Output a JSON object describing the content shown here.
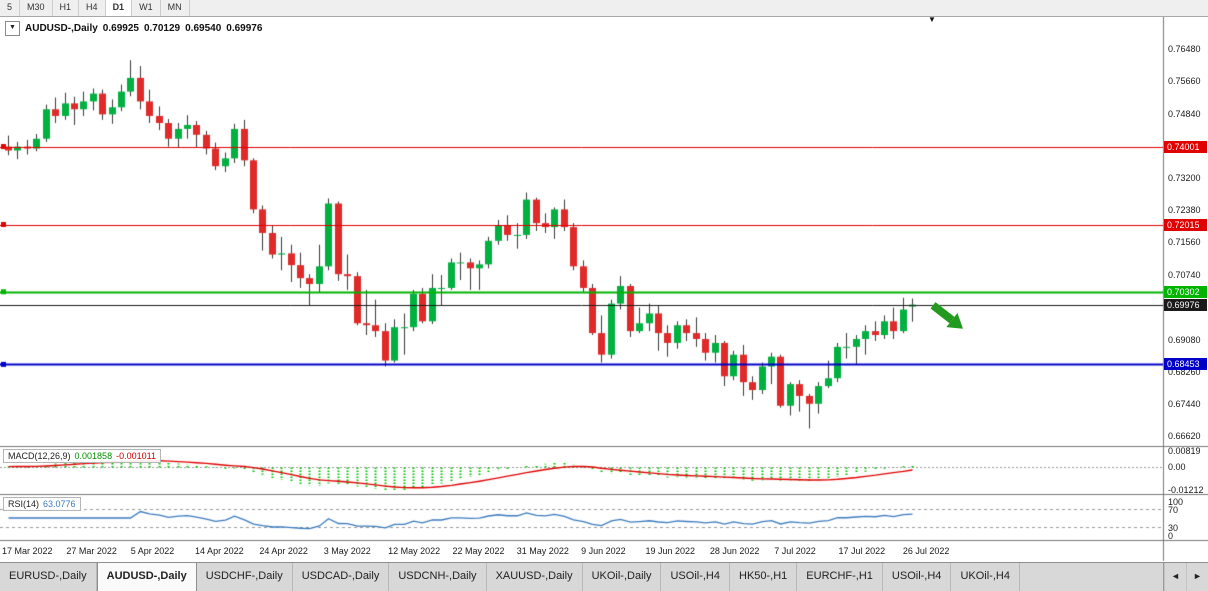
{
  "toolbar": {
    "timeframes": [
      "5",
      "M30",
      "H1",
      "H4",
      "D1",
      "W1",
      "MN"
    ],
    "active_timeframe": "D1"
  },
  "chart": {
    "marker": "▼",
    "symbol_label": "AUDUSD-,Daily",
    "ohlc": {
      "open": "0.69925",
      "high": "0.70129",
      "low": "0.69540",
      "close": "0.69976"
    }
  },
  "price_axis": {
    "ticks": [
      "0.76480",
      "0.75660",
      "0.74840",
      "0.73200",
      "0.72380",
      "0.71560",
      "0.70740",
      "0.69080",
      "0.68260",
      "0.67440",
      "0.66620"
    ],
    "badges": [
      {
        "label": "0.74001",
        "value": 0.74001,
        "color": "#e00000",
        "line_width": 1,
        "marker": true
      },
      {
        "label": "0.72015",
        "value": 0.72015,
        "color": "#e00000",
        "line_width": 1,
        "marker": true
      },
      {
        "label": "0.70302",
        "value": 0.70302,
        "color": "#00b400",
        "line_width": 2,
        "marker": true
      },
      {
        "label": "0.69976",
        "value": 0.69976,
        "color": "#1a1a1a",
        "line_width": 1,
        "marker": false
      },
      {
        "label": "0.68453",
        "value": 0.68453,
        "color": "#0000c8",
        "line_width": 2,
        "marker": true
      }
    ]
  },
  "macd": {
    "label": "MACD(12,26,9)",
    "value_main": "0.001858",
    "value_signal": "-0.001011",
    "axis": [
      {
        "label": "0.00819",
        "value": 0.00819
      },
      {
        "label": "0.00",
        "value": 0
      },
      {
        "label": "-0.01212",
        "value": -0.01212
      }
    ]
  },
  "rsi": {
    "label": "RSI(14)",
    "value": "63.0776",
    "axis": [
      {
        "label": "100",
        "value": 100
      },
      {
        "label": "70",
        "value": 70
      },
      {
        "label": "30",
        "value": 30
      },
      {
        "label": "0",
        "value": 0
      }
    ],
    "levels": [
      70,
      30
    ]
  },
  "date_axis": {
    "labels": [
      "17 Mar 2022",
      "27 Mar 2022",
      "5 Apr 2022",
      "14 Apr 2022",
      "24 Apr 2022",
      "3 May 2022",
      "12 May 2022",
      "22 May 2022",
      "31 May 2022",
      "9 Jun 2022",
      "19 Jun 2022",
      "28 Jun 2022",
      "7 Jul 2022",
      "17 Jul 2022",
      "26 Jul 2022"
    ]
  },
  "tabs": {
    "active_index": 1,
    "items": [
      {
        "label": "EURUSD-,Daily"
      },
      {
        "label": "AUDUSD-,Daily"
      },
      {
        "label": "USDCHF-,Daily"
      },
      {
        "label": "USDCAD-,Daily"
      },
      {
        "label": "USDCNH-,Daily"
      },
      {
        "label": "XAUUSD-,Daily"
      },
      {
        "label": "UKOil-,Daily"
      },
      {
        "label": "USOil-,H4"
      },
      {
        "label": "HK50-,H1"
      },
      {
        "label": "EURCHF-,H1"
      },
      {
        "label": "USOil-,H4"
      },
      {
        "label": "UKOil-,H4"
      }
    ],
    "nav": {
      "left": "◄",
      "right": "►"
    }
  },
  "annotation": {
    "type": "down-right-arrow",
    "color": "#22991f"
  },
  "chart_data": {
    "type": "candlestick",
    "symbol": "AUDUSD",
    "timeframe": "Daily",
    "ohlc_current": {
      "open": 0.69925,
      "high": 0.70129,
      "low": 0.6954,
      "close": 0.69976
    },
    "ylim": [
      0.664,
      0.773
    ],
    "horizontal_lines": [
      {
        "value": 0.74001,
        "color": "#e00000"
      },
      {
        "value": 0.72015,
        "color": "#e00000"
      },
      {
        "value": 0.70302,
        "color": "#00b400"
      },
      {
        "value": 0.69976,
        "color": "#1a1a1a"
      },
      {
        "value": 0.68453,
        "color": "#0000c8"
      }
    ],
    "indicators": [
      {
        "name": "MACD",
        "params": [
          12,
          26,
          9
        ],
        "current_main": 0.001858,
        "current_signal": -0.001011,
        "axis_max": 0.00819,
        "axis_min": -0.01212
      },
      {
        "name": "RSI",
        "params": [
          14
        ],
        "current": 63.0776,
        "levels": [
          70,
          30
        ]
      }
    ],
    "colors": {
      "bull": "#00b140",
      "bear": "#e02a2a",
      "wick": "#3a3a3a",
      "macd_hist": "#00c000",
      "macd_signal": "#e00000",
      "rsi_line": "#3a7abd",
      "background": "#ffffff"
    },
    "dates": [
      "2022-03-17",
      "2022-03-18",
      "2022-03-21",
      "2022-03-22",
      "2022-03-23",
      "2022-03-24",
      "2022-03-25",
      "2022-03-28",
      "2022-03-29",
      "2022-03-30",
      "2022-03-31",
      "2022-04-01",
      "2022-04-04",
      "2022-04-05",
      "2022-04-06",
      "2022-04-07",
      "2022-04-08",
      "2022-04-11",
      "2022-04-12",
      "2022-04-13",
      "2022-04-14",
      "2022-04-15",
      "2022-04-18",
      "2022-04-19",
      "2022-04-20",
      "2022-04-21",
      "2022-04-22",
      "2022-04-25",
      "2022-04-26",
      "2022-04-27",
      "2022-04-28",
      "2022-04-29",
      "2022-05-02",
      "2022-05-03",
      "2022-05-04",
      "2022-05-05",
      "2022-05-06",
      "2022-05-09",
      "2022-05-10",
      "2022-05-11",
      "2022-05-12",
      "2022-05-13",
      "2022-05-16",
      "2022-05-17",
      "2022-05-18",
      "2022-05-19",
      "2022-05-20",
      "2022-05-23",
      "2022-05-24",
      "2022-05-25",
      "2022-05-26",
      "2022-05-27",
      "2022-05-30",
      "2022-05-31",
      "2022-06-01",
      "2022-06-02",
      "2022-06-03",
      "2022-06-06",
      "2022-06-07",
      "2022-06-08",
      "2022-06-09",
      "2022-06-10",
      "2022-06-13",
      "2022-06-14",
      "2022-06-15",
      "2022-06-16",
      "2022-06-17",
      "2022-06-20",
      "2022-06-21",
      "2022-06-22",
      "2022-06-23",
      "2022-06-24",
      "2022-06-27",
      "2022-06-28",
      "2022-06-29",
      "2022-06-30",
      "2022-07-01",
      "2022-07-04",
      "2022-07-05",
      "2022-07-06",
      "2022-07-07",
      "2022-07-08",
      "2022-07-11",
      "2022-07-12",
      "2022-07-13",
      "2022-07-14",
      "2022-07-15",
      "2022-07-18",
      "2022-07-19",
      "2022-07-20",
      "2022-07-21",
      "2022-07-22",
      "2022-07-25",
      "2022-07-26",
      "2022-07-27",
      "2022-07-28",
      "2022-07-29"
    ],
    "candles": [
      [
        0.74,
        0.7428,
        0.7378,
        0.739
      ],
      [
        0.739,
        0.7412,
        0.7368,
        0.74
      ],
      [
        0.74,
        0.7417,
        0.738,
        0.7395
      ],
      [
        0.7395,
        0.7432,
        0.7388,
        0.742
      ],
      [
        0.742,
        0.7507,
        0.7412,
        0.7495
      ],
      [
        0.7495,
        0.7525,
        0.746,
        0.7478
      ],
      [
        0.7478,
        0.7537,
        0.7468,
        0.751
      ],
      [
        0.751,
        0.7527,
        0.7455,
        0.7495
      ],
      [
        0.7495,
        0.754,
        0.7478,
        0.7515
      ],
      [
        0.7515,
        0.7548,
        0.7492,
        0.7535
      ],
      [
        0.7535,
        0.7545,
        0.7468,
        0.7482
      ],
      [
        0.7482,
        0.752,
        0.7458,
        0.75
      ],
      [
        0.75,
        0.7558,
        0.749,
        0.754
      ],
      [
        0.754,
        0.762,
        0.7528,
        0.7575
      ],
      [
        0.7575,
        0.7605,
        0.7495,
        0.7515
      ],
      [
        0.7515,
        0.7545,
        0.746,
        0.7478
      ],
      [
        0.7478,
        0.7502,
        0.7442,
        0.746
      ],
      [
        0.746,
        0.747,
        0.74,
        0.742
      ],
      [
        0.742,
        0.746,
        0.7398,
        0.7445
      ],
      [
        0.7445,
        0.748,
        0.742,
        0.7455
      ],
      [
        0.7455,
        0.7465,
        0.7398,
        0.743
      ],
      [
        0.743,
        0.744,
        0.738,
        0.7395
      ],
      [
        0.7395,
        0.741,
        0.734,
        0.735
      ],
      [
        0.735,
        0.7385,
        0.7335,
        0.737
      ],
      [
        0.737,
        0.7458,
        0.7358,
        0.7445
      ],
      [
        0.7445,
        0.7468,
        0.735,
        0.7365
      ],
      [
        0.7365,
        0.737,
        0.723,
        0.724
      ],
      [
        0.724,
        0.725,
        0.7135,
        0.718
      ],
      [
        0.718,
        0.72,
        0.7115,
        0.7125
      ],
      [
        0.7125,
        0.717,
        0.7085,
        0.7128
      ],
      [
        0.7128,
        0.715,
        0.7055,
        0.7098
      ],
      [
        0.7098,
        0.713,
        0.704,
        0.7065
      ],
      [
        0.7065,
        0.7075,
        0.6995,
        0.705
      ],
      [
        0.705,
        0.715,
        0.7029,
        0.7095
      ],
      [
        0.7095,
        0.7268,
        0.7085,
        0.7255
      ],
      [
        0.7255,
        0.726,
        0.7058,
        0.7075
      ],
      [
        0.7075,
        0.7125,
        0.7035,
        0.707
      ],
      [
        0.707,
        0.708,
        0.6945,
        0.695
      ],
      [
        0.695,
        0.7035,
        0.692,
        0.6945
      ],
      [
        0.6945,
        0.701,
        0.6915,
        0.693
      ],
      [
        0.693,
        0.695,
        0.684,
        0.6855
      ],
      [
        0.6855,
        0.696,
        0.685,
        0.694
      ],
      [
        0.694,
        0.6975,
        0.687,
        0.694
      ],
      [
        0.694,
        0.7035,
        0.693,
        0.7025
      ],
      [
        0.7025,
        0.704,
        0.695,
        0.6955
      ],
      [
        0.6955,
        0.7075,
        0.6948,
        0.704
      ],
      [
        0.704,
        0.7073,
        0.6995,
        0.704
      ],
      [
        0.704,
        0.7115,
        0.7035,
        0.7105
      ],
      [
        0.7105,
        0.713,
        0.706,
        0.7105
      ],
      [
        0.7105,
        0.7115,
        0.7035,
        0.709
      ],
      [
        0.709,
        0.711,
        0.7035,
        0.71
      ],
      [
        0.71,
        0.717,
        0.709,
        0.716
      ],
      [
        0.716,
        0.7213,
        0.715,
        0.72
      ],
      [
        0.72,
        0.7225,
        0.716,
        0.7175
      ],
      [
        0.7175,
        0.7205,
        0.714,
        0.7175
      ],
      [
        0.7175,
        0.7283,
        0.7165,
        0.7265
      ],
      [
        0.7265,
        0.727,
        0.7185,
        0.7205
      ],
      [
        0.7205,
        0.723,
        0.718,
        0.7195
      ],
      [
        0.7195,
        0.7245,
        0.7165,
        0.724
      ],
      [
        0.724,
        0.7265,
        0.7185,
        0.7195
      ],
      [
        0.7195,
        0.7205,
        0.7085,
        0.7095
      ],
      [
        0.7095,
        0.711,
        0.703,
        0.704
      ],
      [
        0.704,
        0.705,
        0.692,
        0.6925
      ],
      [
        0.6925,
        0.697,
        0.685,
        0.687
      ],
      [
        0.687,
        0.701,
        0.686,
        0.7
      ],
      [
        0.7,
        0.707,
        0.6985,
        0.7045
      ],
      [
        0.7045,
        0.705,
        0.6915,
        0.693
      ],
      [
        0.693,
        0.699,
        0.6925,
        0.695
      ],
      [
        0.695,
        0.7,
        0.693,
        0.6975
      ],
      [
        0.6975,
        0.6995,
        0.688,
        0.6925
      ],
      [
        0.6925,
        0.6945,
        0.6865,
        0.69
      ],
      [
        0.69,
        0.6955,
        0.6885,
        0.6945
      ],
      [
        0.6945,
        0.696,
        0.6905,
        0.6925
      ],
      [
        0.6925,
        0.6965,
        0.689,
        0.691
      ],
      [
        0.691,
        0.6925,
        0.6855,
        0.6875
      ],
      [
        0.6875,
        0.692,
        0.685,
        0.69
      ],
      [
        0.69,
        0.6905,
        0.679,
        0.6815
      ],
      [
        0.6815,
        0.688,
        0.6805,
        0.687
      ],
      [
        0.687,
        0.6895,
        0.6765,
        0.68
      ],
      [
        0.68,
        0.6815,
        0.6755,
        0.678
      ],
      [
        0.678,
        0.685,
        0.677,
        0.684
      ],
      [
        0.684,
        0.6875,
        0.6795,
        0.6865
      ],
      [
        0.6865,
        0.687,
        0.6735,
        0.674
      ],
      [
        0.674,
        0.68,
        0.6715,
        0.6795
      ],
      [
        0.6795,
        0.6805,
        0.6725,
        0.6765
      ],
      [
        0.6765,
        0.677,
        0.6682,
        0.6745
      ],
      [
        0.6745,
        0.68,
        0.672,
        0.679
      ],
      [
        0.679,
        0.6855,
        0.6785,
        0.681
      ],
      [
        0.681,
        0.69,
        0.68,
        0.689
      ],
      [
        0.689,
        0.6925,
        0.686,
        0.689
      ],
      [
        0.689,
        0.692,
        0.6845,
        0.691
      ],
      [
        0.691,
        0.6945,
        0.687,
        0.693
      ],
      [
        0.693,
        0.6955,
        0.6905,
        0.692
      ],
      [
        0.692,
        0.697,
        0.691,
        0.6955
      ],
      [
        0.6955,
        0.699,
        0.691,
        0.693
      ],
      [
        0.693,
        0.7015,
        0.6925,
        0.6985
      ],
      [
        0.69925,
        0.70129,
        0.6954,
        0.69976
      ]
    ]
  }
}
